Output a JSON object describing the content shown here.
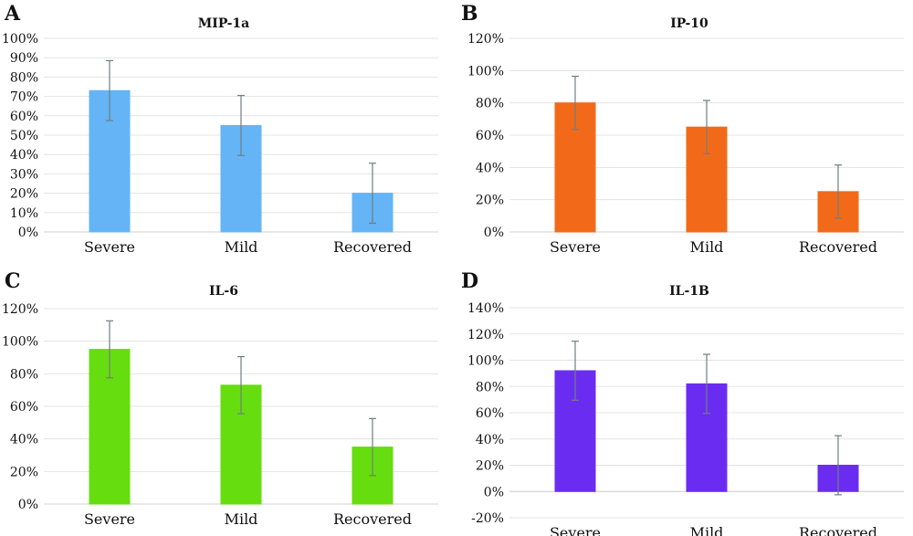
{
  "chart_data": [
    {
      "type": "bar",
      "panel": "A",
      "title": "MIP-1a",
      "categories": [
        "Severe",
        "Mild",
        "Recovered"
      ],
      "values": [
        73,
        55,
        20
      ],
      "error": [
        15.5,
        15.5,
        15.5
      ],
      "ylim": [
        0,
        100
      ],
      "yticks": [
        "0%",
        "10%",
        "20%",
        "30%",
        "40%",
        "50%",
        "60%",
        "70%",
        "80%",
        "90%",
        "100%"
      ],
      "color": "#64b4f6",
      "grid": true
    },
    {
      "type": "bar",
      "panel": "B",
      "title": "IP-10",
      "categories": [
        "Severe",
        "Mild",
        "Recovered"
      ],
      "values": [
        80,
        65,
        25
      ],
      "error": [
        16.5,
        16.5,
        16.5
      ],
      "ylim": [
        0,
        120
      ],
      "yticks": [
        "0%",
        "20%",
        "40%",
        "60%",
        "80%",
        "100%",
        "120%"
      ],
      "color": "#f26a19",
      "grid": true
    },
    {
      "type": "bar",
      "panel": "C",
      "title": "IL-6",
      "categories": [
        "Severe",
        "Mild",
        "Recovered"
      ],
      "values": [
        95,
        73,
        35
      ],
      "error": [
        17.5,
        17.5,
        17.5
      ],
      "ylim": [
        0,
        120
      ],
      "yticks": [
        "0%",
        "20%",
        "40%",
        "60%",
        "80%",
        "100%",
        "120%"
      ],
      "color": "#66dd0f",
      "grid": true
    },
    {
      "type": "bar",
      "panel": "D",
      "title": "IL-1B",
      "categories": [
        "Severe",
        "Mild",
        "Recovered"
      ],
      "values": [
        92,
        82,
        20
      ],
      "error": [
        22.5,
        22.5,
        22.5
      ],
      "ylim": [
        -20,
        140
      ],
      "yticks": [
        "-20%",
        "0%",
        "20%",
        "40%",
        "60%",
        "80%",
        "100%",
        "120%",
        "140%"
      ],
      "color": "#6b2cf2",
      "grid": true
    }
  ]
}
